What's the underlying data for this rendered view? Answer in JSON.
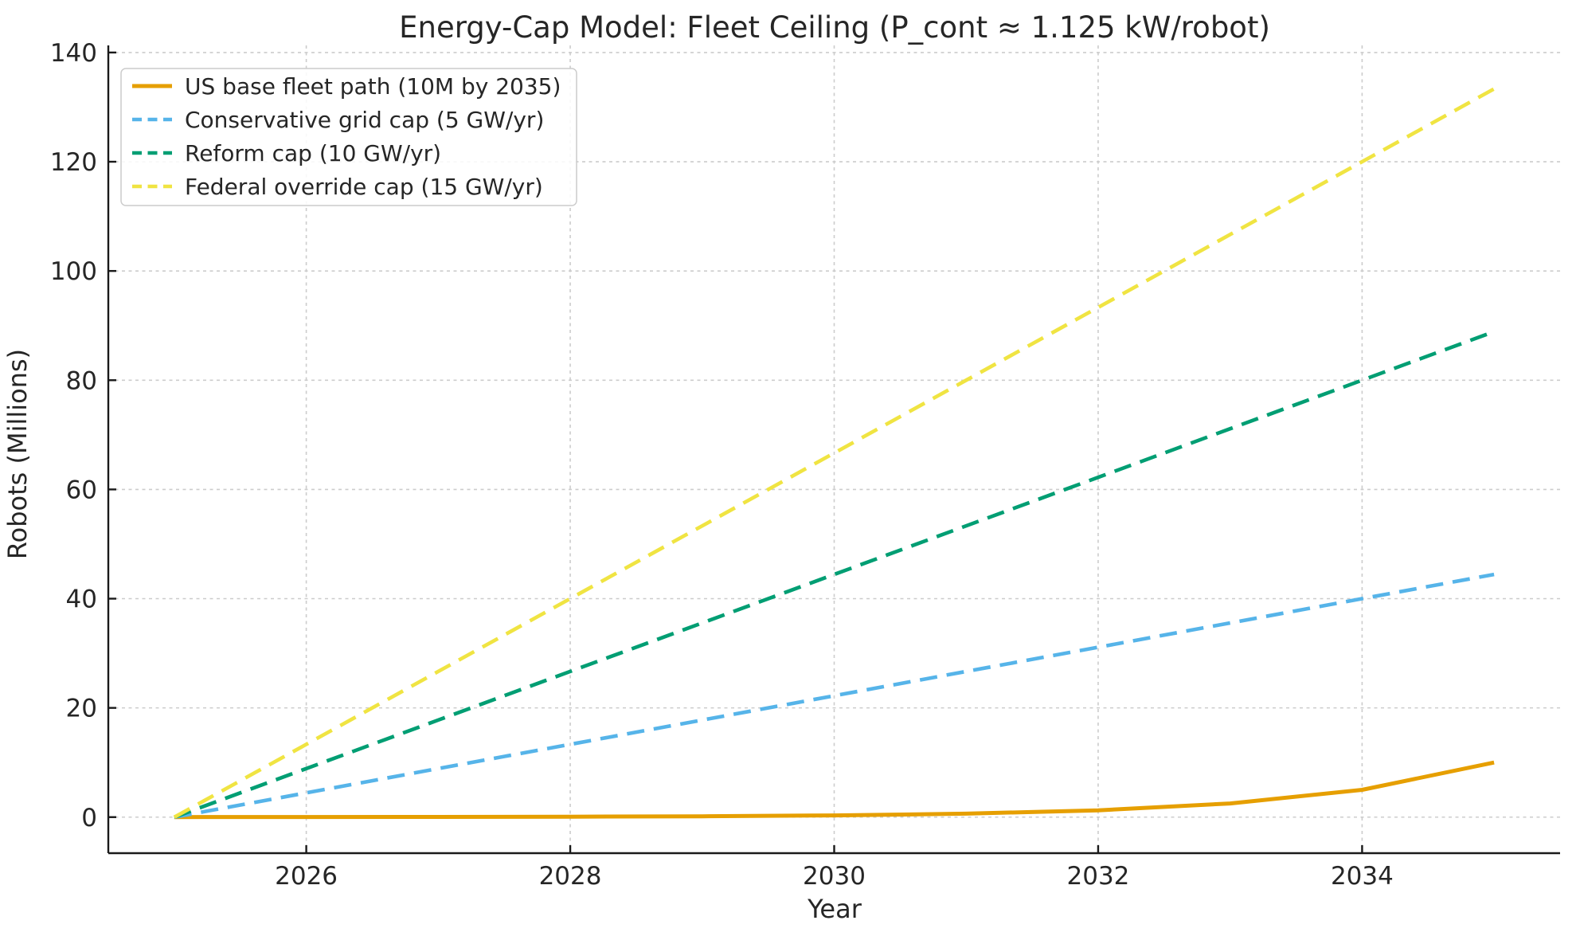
{
  "chart_data": {
    "type": "line",
    "title": "Energy-Cap Model: Fleet Ceiling (P_cont ≈ 1.125 kW/robot)",
    "xlabel": "Year",
    "ylabel": "Robots (Millions)",
    "xlim": [
      2024.5,
      2035.5
    ],
    "ylim": [
      -6.6,
      141.3
    ],
    "xticks": [
      2026,
      2028,
      2030,
      2032,
      2034
    ],
    "yticks": [
      0,
      20,
      40,
      60,
      80,
      100,
      120,
      140
    ],
    "grid": true,
    "grid_style": "dashed",
    "legend_position": "upper-left",
    "x": [
      2025,
      2026,
      2027,
      2028,
      2029,
      2030,
      2031,
      2032,
      2033,
      2034,
      2035
    ],
    "series": [
      {
        "name": "US base fleet path (10M by 2035)",
        "color": "#E69F00",
        "style": "solid",
        "values": [
          0.01,
          0.02,
          0.04,
          0.08,
          0.16,
          0.31,
          0.63,
          1.25,
          2.5,
          5.0,
          10.0
        ]
      },
      {
        "name": "Conservative grid cap (5 GW/yr)",
        "color": "#56B4E9",
        "style": "dashed",
        "values": [
          0,
          4.44,
          8.89,
          13.33,
          17.78,
          22.22,
          26.67,
          31.11,
          35.56,
          40.0,
          44.44
        ]
      },
      {
        "name": "Reform cap (10 GW/yr)",
        "color": "#009E73",
        "style": "dashed",
        "values": [
          0,
          8.89,
          17.78,
          26.67,
          35.56,
          44.44,
          53.33,
          62.22,
          71.11,
          80.0,
          88.89
        ]
      },
      {
        "name": "Federal override cap (15 GW/yr)",
        "color": "#F0E442",
        "style": "dashed",
        "values": [
          0,
          13.33,
          26.67,
          40.0,
          53.33,
          66.67,
          80.0,
          93.33,
          106.67,
          120.0,
          133.33
        ]
      }
    ],
    "colors": {
      "grid": "#CCCCCC",
      "spine": "#1A1A1A",
      "text": "#262626",
      "background": "#FFFFFF"
    }
  }
}
